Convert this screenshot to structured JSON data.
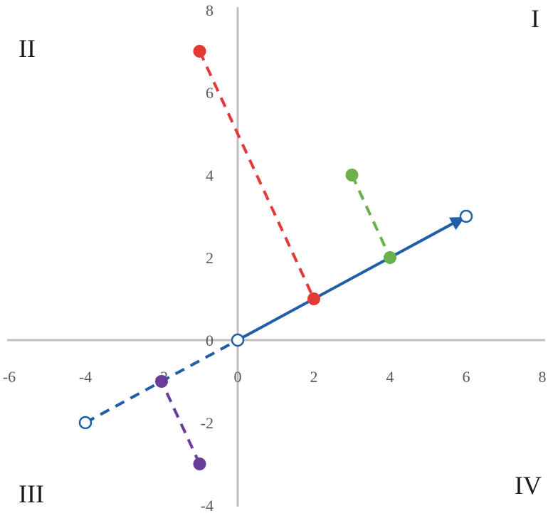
{
  "chart_data": {
    "type": "scatter",
    "title": "",
    "xlabel": "",
    "ylabel": "",
    "xlim": [
      -6,
      8
    ],
    "ylim": [
      -4,
      8
    ],
    "x_ticks": [
      "-6",
      "-4",
      "-2",
      "0",
      "2",
      "4",
      "6",
      "8"
    ],
    "y_ticks": [
      "-4",
      "-2",
      "0",
      "2",
      "4",
      "6",
      "8"
    ],
    "grid": false,
    "legend": "none",
    "quadrant_labels": {
      "I": "I",
      "II": "II",
      "III": "III",
      "IV": "IV"
    },
    "vector": {
      "color": "#1f5fa8",
      "solid": {
        "from": [
          0,
          0
        ],
        "to": [
          6,
          3
        ]
      },
      "dashed": {
        "from": [
          -4,
          -2
        ],
        "to": [
          0,
          0
        ]
      },
      "open_endpoints": [
        [
          -4,
          -2
        ],
        [
          0,
          0
        ],
        [
          6,
          3
        ]
      ]
    },
    "projections": [
      {
        "color": "#e53935",
        "point": [
          -1,
          7
        ],
        "foot": [
          2,
          1
        ]
      },
      {
        "color": "#6ab04c",
        "point": [
          3,
          4
        ],
        "foot": [
          4,
          2
        ]
      },
      {
        "color": "#6a3d9a",
        "point": [
          -1,
          -3
        ],
        "foot": [
          -2,
          -1
        ]
      }
    ]
  }
}
